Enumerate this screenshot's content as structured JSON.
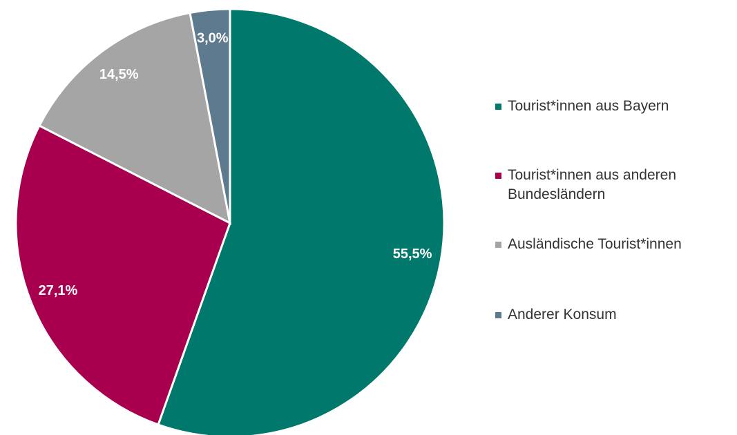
{
  "chart_data": {
    "type": "pie",
    "categories": [
      "Tourist*innen aus Bayern",
      "Tourist*innen aus anderen Bundesländern",
      "Ausländische Tourist*innen",
      "Anderer Konsum"
    ],
    "values": [
      55.5,
      27.1,
      14.5,
      3.0
    ],
    "value_labels": [
      "55,5%",
      "27,1%",
      "14,5%",
      "3,0%"
    ],
    "colors": [
      "#00786b",
      "#a8004f",
      "#a5a5a5",
      "#5e7a8e"
    ],
    "legend": "right"
  }
}
